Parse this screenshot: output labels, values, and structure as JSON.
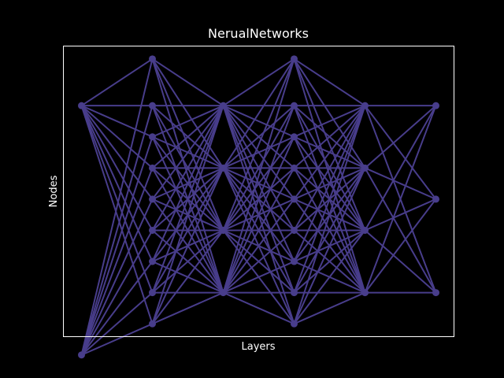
{
  "chart_data": {
    "type": "network",
    "title": "NerualNetworks",
    "xlabel": "Layers",
    "ylabel": "Nodes",
    "grid": false,
    "frame": true,
    "layers": [
      {
        "x": 0,
        "nodes": [
          0,
          8
        ]
      },
      {
        "x": 1,
        "nodes": [
          -1.5,
          0,
          1,
          2,
          3,
          4,
          5,
          6,
          7
        ]
      },
      {
        "x": 2,
        "nodes": [
          0,
          2,
          4,
          6
        ]
      },
      {
        "x": 3,
        "nodes": [
          -1.5,
          0,
          1,
          2,
          3,
          4,
          5,
          6,
          7
        ]
      },
      {
        "x": 4,
        "nodes": [
          0,
          2,
          4,
          6
        ]
      },
      {
        "x": 5,
        "nodes": [
          0,
          3,
          6
        ]
      }
    ],
    "connections": "fully-connected between adjacent layers",
    "xlim": [
      -0.25,
      5.25
    ],
    "ylim": [
      -1.9,
      7.4
    ],
    "y_inverted": true
  },
  "colors": {
    "background": "#000000",
    "frame": "#ffffff",
    "edge": "#483d8b",
    "node": "#483d8b",
    "text": "#ffffff"
  }
}
